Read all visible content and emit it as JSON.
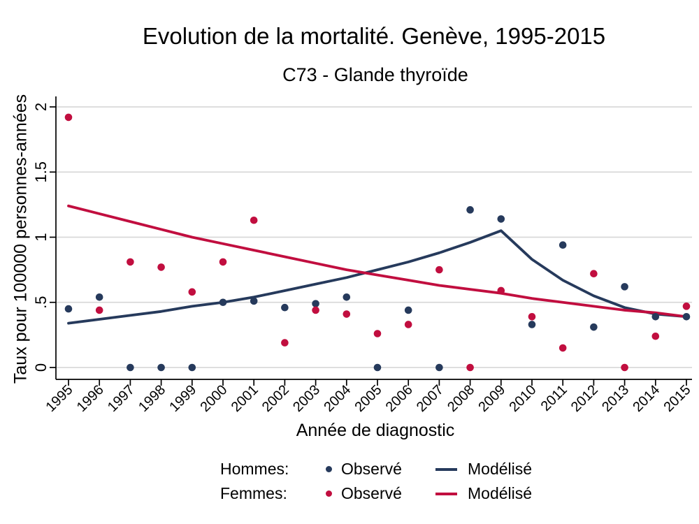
{
  "header": {
    "title": "Evolution de la mortalité. Genève, 1995-2015",
    "subtitle": "C73 - Glande thyroïde"
  },
  "axes": {
    "y_label": "Taux pour 100000 personnes-années",
    "x_label": "Année de diagnostic"
  },
  "legend": {
    "rows": [
      {
        "group": "Hommes:",
        "observed": "Observé",
        "modeled": "Modélisé",
        "color": "#263A5C"
      },
      {
        "group": "Femmes:",
        "observed": "Observé",
        "modeled": "Modélisé",
        "color": "#C10E3F"
      }
    ]
  },
  "chart_data": {
    "type": "scatter",
    "title": "Evolution de la mortalité. Genève, 1995-2015",
    "subtitle": "C73 - Glande thyroïde",
    "xlabel": "Année de diagnostic",
    "ylabel": "Taux pour 100000 personnes-années",
    "x": [
      1995,
      1996,
      1997,
      1998,
      1999,
      2000,
      2001,
      2002,
      2003,
      2004,
      2005,
      2006,
      2007,
      2008,
      2009,
      2010,
      2011,
      2012,
      2013,
      2014,
      2015
    ],
    "ylim": [
      0,
      2
    ],
    "y_ticks": [
      {
        "value": 0,
        "label": "0"
      },
      {
        "value": 0.5,
        "label": ".5"
      },
      {
        "value": 1,
        "label": "1"
      },
      {
        "value": 1.5,
        "label": "1.5"
      },
      {
        "value": 2,
        "label": "2"
      }
    ],
    "grid": "horizontal",
    "legend_position": "bottom",
    "colors": {
      "hommes": "#263A5C",
      "femmes": "#C10E3F",
      "grid": "#D9D9D9",
      "axis": "#000000"
    },
    "series": [
      {
        "name": "Hommes: Observé",
        "type": "scatter",
        "color": "#263A5C",
        "values": [
          0.45,
          0.54,
          0,
          0,
          0,
          0.5,
          0.51,
          0.46,
          0.49,
          0.54,
          0,
          0.44,
          0,
          1.21,
          1.14,
          0.33,
          0.94,
          0.31,
          0.62,
          0.39,
          0.39
        ]
      },
      {
        "name": "Femmes: Observé",
        "type": "scatter",
        "color": "#C10E3F",
        "values": [
          1.92,
          0.44,
          0.81,
          0.77,
          0.58,
          0.81,
          1.13,
          0.19,
          0.44,
          0.41,
          0.26,
          0.33,
          0.75,
          0,
          0.59,
          0.39,
          0.15,
          0.72,
          0,
          0.24,
          0.47
        ]
      },
      {
        "name": "Hommes: Modélisé",
        "type": "line",
        "color": "#263A5C",
        "values": [
          0.34,
          0.37,
          0.4,
          0.43,
          0.47,
          0.5,
          0.54,
          0.59,
          0.64,
          0.69,
          0.75,
          0.81,
          0.88,
          0.96,
          1.05,
          0.83,
          0.67,
          0.55,
          0.46,
          0.41,
          0.39
        ]
      },
      {
        "name": "Femmes: Modélisé",
        "type": "line",
        "color": "#C10E3F",
        "values": [
          1.24,
          1.18,
          1.12,
          1.06,
          1.0,
          0.95,
          0.9,
          0.85,
          0.8,
          0.75,
          0.71,
          0.67,
          0.63,
          0.6,
          0.57,
          0.53,
          0.5,
          0.47,
          0.44,
          0.42,
          0.39
        ]
      }
    ]
  }
}
